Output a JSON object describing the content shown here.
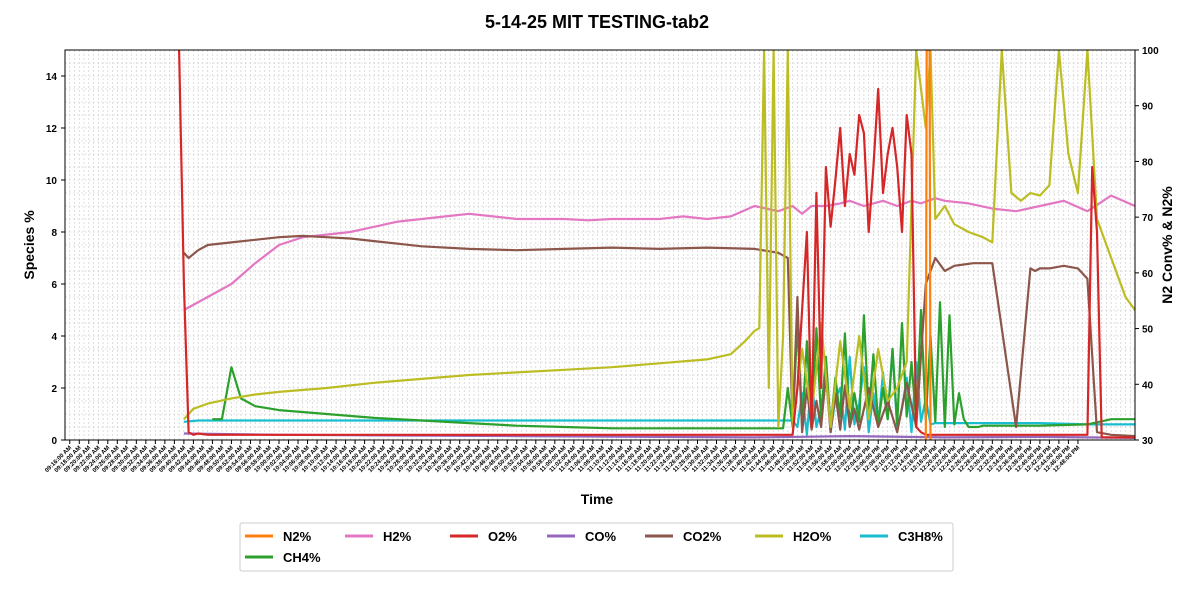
{
  "chart_data": {
    "type": "line",
    "title": "5-14-25 MIT TESTING-tab2",
    "xlabel": "Time",
    "ylabel": "Species %",
    "y2label": "N2 Conv% & N2%",
    "ylim": [
      0,
      15
    ],
    "y2lim": [
      30,
      100
    ],
    "yticks": [
      "0",
      "2",
      "4",
      "6",
      "8",
      "10",
      "12",
      "14"
    ],
    "y2ticks": [
      "30",
      "40",
      "50",
      "60",
      "70",
      "80",
      "90",
      "100"
    ],
    "xlim_minutes": [
      555,
      780
    ],
    "grid": true,
    "legend_position": "bottom-center",
    "xticks": [
      "09:16:00 AM",
      "09:18:00 AM",
      "09:20:00 AM",
      "09:22:00 AM",
      "09:24:00 AM",
      "09:26:00 AM",
      "09:28:00 AM",
      "09:30:00 AM",
      "09:32:00 AM",
      "09:34:00 AM",
      "09:36:00 AM",
      "09:38:00 AM",
      "09:40:00 AM",
      "09:42:00 AM",
      "09:44:00 AM",
      "09:46:00 AM",
      "09:48:00 AM",
      "09:50:00 AM",
      "09:52:00 AM",
      "09:54:00 AM",
      "09:56:00 AM",
      "09:58:00 AM",
      "10:00:00 AM",
      "10:02:00 AM",
      "10:04:00 AM",
      "10:06:00 AM",
      "10:08:00 AM",
      "10:10:00 AM",
      "10:12:00 AM",
      "10:14:00 AM",
      "10:16:00 AM",
      "10:18:00 AM",
      "10:20:00 AM",
      "10:22:00 AM",
      "10:24:00 AM",
      "10:26:00 AM",
      "10:28:00 AM",
      "10:30:00 AM",
      "10:32:00 AM",
      "10:34:00 AM",
      "10:36:00 AM",
      "10:38:00 AM",
      "10:40:00 AM",
      "10:42:00 AM",
      "10:44:00 AM",
      "10:46:00 AM",
      "10:48:00 AM",
      "10:50:00 AM",
      "10:52:00 AM",
      "10:54:00 AM",
      "10:56:00 AM",
      "10:58:00 AM",
      "11:00:00 AM",
      "11:02:00 AM",
      "11:04:00 AM",
      "11:06:00 AM",
      "11:08:00 AM",
      "11:10:00 AM",
      "11:12:00 AM",
      "11:14:00 AM",
      "11:16:00 AM",
      "11:18:00 AM",
      "11:20:00 AM",
      "11:22:00 AM",
      "11:24:00 AM",
      "11:26:00 AM",
      "11:28:00 AM",
      "11:30:00 AM",
      "11:32:00 AM",
      "11:34:00 AM",
      "11:36:00 AM",
      "11:38:00 AM",
      "11:40:00 AM",
      "11:42:00 AM",
      "11:44:00 AM",
      "11:46:00 AM",
      "11:48:00 AM",
      "11:50:00 AM",
      "11:52:00 AM",
      "11:54:00 AM",
      "11:56:00 AM",
      "11:58:00 AM",
      "12:00:00 PM",
      "12:02:00 PM",
      "12:04:00 PM",
      "12:06:00 PM",
      "12:08:00 PM",
      "12:10:00 PM",
      "12:12:00 PM",
      "12:14:00 PM",
      "12:16:00 PM",
      "12:18:00 PM",
      "12:20:00 PM",
      "12:22:00 PM",
      "12:24:00 PM",
      "12:26:00 PM",
      "12:28:00 PM",
      "12:30:00 PM",
      "12:32:00 PM",
      "12:34:00 PM",
      "12:36:00 PM",
      "12:38:00 PM",
      "12:40:00 PM",
      "12:42:00 PM",
      "12:44:00 PM",
      "12:46:00 PM",
      "12:48:00 PM"
    ],
    "series": [
      {
        "name": "N2%",
        "color": "#ff7f0e",
        "axis": "right",
        "x": [
          736.0,
          736.2,
          736.5,
          736.8,
          737.0
        ],
        "y": [
          30,
          100,
          100,
          100,
          30
        ]
      },
      {
        "name": "CH4%",
        "color": "#2ca02c",
        "axis": "left",
        "x": [
          586,
          588,
          590,
          592,
          595,
          600,
          610,
          620,
          630,
          640,
          650,
          660,
          670,
          680,
          690,
          700,
          706,
          707,
          708,
          709,
          710,
          711,
          712,
          713,
          714,
          715,
          716,
          717,
          718,
          719,
          720,
          721,
          722,
          723,
          724,
          725,
          726,
          727,
          728,
          729,
          730,
          731,
          732,
          733,
          734,
          735,
          736,
          737,
          738,
          739,
          740,
          741,
          742,
          743,
          744,
          745,
          746,
          747,
          748,
          750,
          760,
          770,
          775,
          776,
          780,
          782,
          784
        ],
        "y": [
          0.8,
          0.8,
          2.8,
          1.6,
          1.3,
          1.15,
          1.0,
          0.85,
          0.75,
          0.65,
          0.55,
          0.5,
          0.45,
          0.45,
          0.45,
          0.45,
          0.45,
          2.0,
          0.5,
          4.5,
          0.5,
          3.8,
          0.6,
          4.3,
          0.8,
          3.2,
          0.5,
          2.4,
          0.9,
          4.1,
          0.6,
          1.8,
          0.7,
          4.8,
          0.9,
          3.3,
          0.6,
          2.0,
          0.8,
          3.5,
          0.6,
          4.5,
          0.9,
          3.0,
          0.7,
          5.0,
          0.8,
          4.0,
          0.7,
          5.3,
          0.5,
          4.8,
          0.6,
          1.8,
          0.8,
          0.5,
          0.5,
          0.5,
          0.55,
          0.55,
          0.55,
          0.6,
          0.8,
          0.8,
          0.8,
          0.8,
          0.8
        ]
      },
      {
        "name": "H2%",
        "color": "#e377c2",
        "axis": "left",
        "x": [
          580,
          585,
          590,
          595,
          600,
          605,
          610,
          615,
          620,
          625,
          630,
          635,
          640,
          645,
          650,
          655,
          660,
          665,
          670,
          675,
          680,
          685,
          690,
          695,
          700,
          705,
          708,
          710,
          712,
          715,
          718,
          720,
          723,
          725,
          727,
          730,
          733,
          735,
          738,
          740,
          745,
          750,
          755,
          760,
          765,
          770,
          775,
          780
        ],
        "y": [
          5.0,
          5.5,
          6.0,
          6.8,
          7.5,
          7.8,
          7.9,
          8.0,
          8.2,
          8.4,
          8.5,
          8.6,
          8.7,
          8.6,
          8.5,
          8.5,
          8.5,
          8.45,
          8.5,
          8.5,
          8.5,
          8.6,
          8.5,
          8.6,
          9.0,
          8.8,
          9.0,
          8.7,
          9.0,
          9.0,
          9.1,
          9.2,
          9.0,
          9.1,
          9.2,
          9.0,
          9.2,
          9.1,
          9.3,
          9.2,
          9.1,
          8.9,
          8.8,
          9.0,
          9.2,
          8.8,
          9.4,
          9.0
        ]
      },
      {
        "name": "O2%",
        "color": "#d62728",
        "axis": "left",
        "x": [
          579,
          580,
          581,
          582,
          583,
          585,
          590,
          600,
          620,
          650,
          680,
          700,
          705,
          708,
          709,
          710,
          711,
          712,
          713,
          714,
          715,
          716,
          717,
          718,
          719,
          720,
          721,
          722,
          723,
          724,
          725,
          726,
          727,
          728,
          729,
          730,
          731,
          732,
          733,
          734,
          735,
          736,
          738,
          740,
          760,
          770,
          771,
          772,
          773,
          780,
          785
        ],
        "y": [
          15.0,
          6.0,
          0.3,
          0.2,
          0.25,
          0.2,
          0.2,
          0.2,
          0.2,
          0.2,
          0.2,
          0.2,
          0.2,
          0.2,
          2.0,
          5.0,
          8.0,
          0.5,
          9.5,
          2.0,
          10.5,
          8.2,
          10.0,
          12.0,
          9.0,
          11.0,
          10.2,
          12.5,
          11.8,
          8.0,
          10.5,
          13.5,
          9.5,
          11.0,
          12.0,
          10.5,
          8.0,
          12.5,
          11.0,
          0.5,
          0.3,
          0.2,
          0.2,
          0.2,
          0.2,
          0.2,
          10.5,
          8.0,
          0.1,
          0.1,
          0.1
        ]
      },
      {
        "name": "CO%",
        "color": "#9467bd",
        "axis": "left",
        "x": [
          580,
          600,
          650,
          700,
          720,
          740,
          760,
          770,
          780,
          785
        ],
        "y": [
          0.25,
          0.2,
          0.15,
          0.1,
          0.15,
          0.1,
          0.12,
          0.1,
          0.08,
          0.05
        ]
      },
      {
        "name": "CO2%",
        "color": "#8c564b",
        "axis": "left",
        "x": [
          580,
          581,
          583,
          585,
          590,
          595,
          600,
          605,
          610,
          615,
          620,
          625,
          630,
          640,
          650,
          660,
          670,
          680,
          690,
          700,
          705,
          707,
          708,
          709,
          710,
          711,
          712,
          713,
          714,
          715,
          716,
          717,
          718,
          719,
          720,
          721,
          722,
          724,
          726,
          728,
          730,
          732,
          734,
          736,
          738,
          740,
          742,
          744,
          746,
          748,
          750,
          755,
          758,
          759,
          760,
          762,
          765,
          768,
          770,
          772,
          775,
          780,
          785
        ],
        "y": [
          7.2,
          7.0,
          7.3,
          7.5,
          7.6,
          7.7,
          7.8,
          7.85,
          7.8,
          7.75,
          7.65,
          7.55,
          7.45,
          7.35,
          7.3,
          7.35,
          7.4,
          7.35,
          7.4,
          7.35,
          7.2,
          7.0,
          0.5,
          5.5,
          0.3,
          2.0,
          0.4,
          1.5,
          0.5,
          2.5,
          0.3,
          1.8,
          0.4,
          2.1,
          0.5,
          1.2,
          0.4,
          2.0,
          0.5,
          1.5,
          0.3,
          2.2,
          0.5,
          6.0,
          7.0,
          6.5,
          6.7,
          6.75,
          6.8,
          6.8,
          6.8,
          0.5,
          6.6,
          6.5,
          6.6,
          6.6,
          6.7,
          6.6,
          6.2,
          0.3,
          0.2,
          0.15,
          0.1
        ]
      },
      {
        "name": "H2O%",
        "color": "#bcbd22",
        "axis": "left",
        "x": [
          580,
          582,
          585,
          590,
          595,
          600,
          610,
          620,
          630,
          640,
          650,
          660,
          670,
          680,
          690,
          695,
          698,
          700,
          701,
          702,
          703,
          704,
          705,
          706,
          707,
          708,
          710,
          712,
          714,
          716,
          718,
          720,
          722,
          724,
          726,
          728,
          730,
          732,
          734,
          736,
          737,
          738,
          740,
          742,
          745,
          748,
          750,
          752,
          754,
          756,
          758,
          760,
          762,
          764,
          766,
          768,
          770,
          772,
          775,
          778,
          780,
          782,
          785
        ],
        "y": [
          0.8,
          1.2,
          1.4,
          1.6,
          1.75,
          1.85,
          2.0,
          2.2,
          2.35,
          2.5,
          2.6,
          2.7,
          2.8,
          2.95,
          3.1,
          3.3,
          3.8,
          4.2,
          4.3,
          15,
          2.0,
          15,
          0.5,
          4.0,
          15,
          0.5,
          3.5,
          1.0,
          4.5,
          0.5,
          3.8,
          1.2,
          4.0,
          0.8,
          3.5,
          1.5,
          2.0,
          3.0,
          15,
          12.0,
          15,
          8.5,
          9.0,
          8.3,
          8.0,
          7.8,
          7.6,
          15,
          9.5,
          9.2,
          9.5,
          9.4,
          9.8,
          15,
          11.0,
          9.5,
          15,
          8.5,
          7.0,
          5.5,
          5.0,
          4.75,
          4.7
        ]
      },
      {
        "name": "C3H8%",
        "color": "#17becf",
        "axis": "left",
        "x": [
          580,
          583,
          586,
          590,
          600,
          620,
          650,
          680,
          700,
          705,
          708,
          709,
          710,
          711,
          712,
          713,
          714,
          715,
          716,
          717,
          718,
          719,
          720,
          721,
          722,
          723,
          724,
          725,
          726,
          727,
          728,
          729,
          730,
          731,
          732,
          733,
          734,
          735,
          736,
          737,
          738,
          740,
          750,
          760,
          770,
          780,
          785
        ],
        "y": [
          0.7,
          0.75,
          0.75,
          0.75,
          0.75,
          0.75,
          0.75,
          0.75,
          0.75,
          0.75,
          0.75,
          0.5,
          1.8,
          0.2,
          2.4,
          0.5,
          1.2,
          2.8,
          0.3,
          1.6,
          2.0,
          0.4,
          3.2,
          0.6,
          1.4,
          2.8,
          0.3,
          1.8,
          0.5,
          2.6,
          0.8,
          3.5,
          0.4,
          1.2,
          2.4,
          0.3,
          3.0,
          0.7,
          1.6,
          0.6,
          0.65,
          0.65,
          0.65,
          0.65,
          0.6,
          0.6,
          0.6
        ]
      }
    ],
    "legend": [
      "N2%",
      "H2%",
      "O2%",
      "CO%",
      "CO2%",
      "H2O%",
      "C3H8%",
      "CH4%"
    ]
  }
}
